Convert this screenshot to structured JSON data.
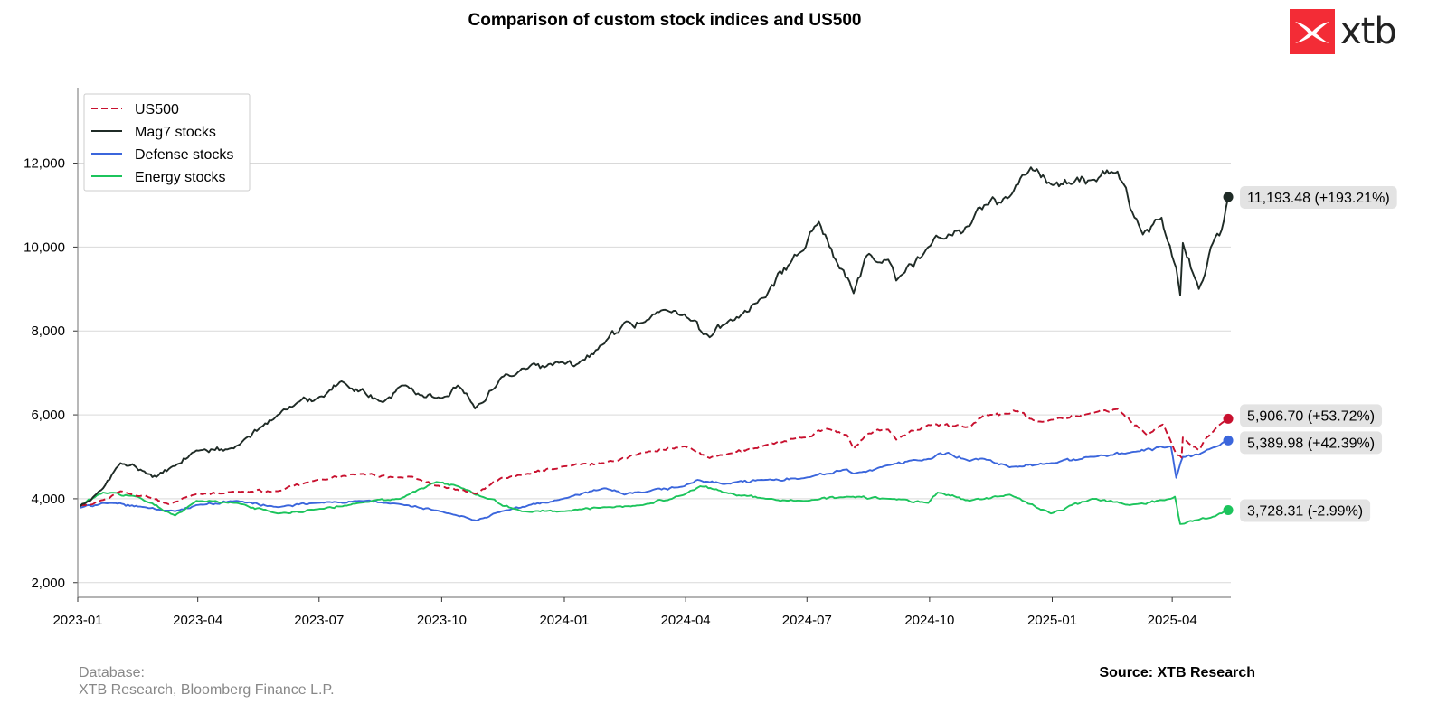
{
  "chart_data": {
    "type": "line",
    "title": "Comparison of custom stock indices and US500",
    "xlabel": "",
    "ylabel": "",
    "ylim": [
      1650,
      13800
    ],
    "yticks": [
      2000,
      4000,
      6000,
      8000,
      10000,
      12000
    ],
    "ytick_labels": [
      "2,000",
      "4,000",
      "6,000",
      "8,000",
      "10,000",
      "12,000"
    ],
    "xlim": [
      "2023-01-01",
      "2025-05-15"
    ],
    "xticks": [
      "2023-01",
      "2023-04",
      "2023-07",
      "2023-10",
      "2024-01",
      "2024-04",
      "2024-07",
      "2024-10",
      "2025-01",
      "2025-04"
    ],
    "grid": "horizontal",
    "legend_position": "top-left",
    "series": [
      {
        "name": "US500",
        "color": "#c8102e",
        "style": "dashed",
        "end_label": "5,906.70 (+53.72%)",
        "points": [
          [
            "2023-01-03",
            3840
          ],
          [
            "2023-01-20",
            3970
          ],
          [
            "2023-02-02",
            4180
          ],
          [
            "2023-02-20",
            4080
          ],
          [
            "2023-03-10",
            3870
          ],
          [
            "2023-03-31",
            4110
          ],
          [
            "2023-04-30",
            4170
          ],
          [
            "2023-05-31",
            4180
          ],
          [
            "2023-06-30",
            4450
          ],
          [
            "2023-07-31",
            4590
          ],
          [
            "2023-08-31",
            4510
          ],
          [
            "2023-09-15",
            4450
          ],
          [
            "2023-09-30",
            4290
          ],
          [
            "2023-10-27",
            4120
          ],
          [
            "2023-11-15",
            4500
          ],
          [
            "2023-11-30",
            4560
          ],
          [
            "2023-12-31",
            4770
          ],
          [
            "2024-01-31",
            4850
          ],
          [
            "2024-02-29",
            5100
          ],
          [
            "2024-03-31",
            5250
          ],
          [
            "2024-04-19",
            4970
          ],
          [
            "2024-04-30",
            5040
          ],
          [
            "2024-05-31",
            5280
          ],
          [
            "2024-06-30",
            5460
          ],
          [
            "2024-07-16",
            5670
          ],
          [
            "2024-07-31",
            5520
          ],
          [
            "2024-08-05",
            5190
          ],
          [
            "2024-08-15",
            5540
          ],
          [
            "2024-08-31",
            5650
          ],
          [
            "2024-09-06",
            5410
          ],
          [
            "2024-09-30",
            5760
          ],
          [
            "2024-10-31",
            5710
          ],
          [
            "2024-11-11",
            6000
          ],
          [
            "2024-11-30",
            6030
          ],
          [
            "2024-12-06",
            6090
          ],
          [
            "2024-12-18",
            5870
          ],
          [
            "2024-12-31",
            5880
          ],
          [
            "2025-01-31",
            6040
          ],
          [
            "2025-02-19",
            6140
          ],
          [
            "2025-03-13",
            5520
          ],
          [
            "2025-03-25",
            5770
          ],
          [
            "2025-04-04",
            5070
          ],
          [
            "2025-04-08",
            4980
          ],
          [
            "2025-04-09",
            5460
          ],
          [
            "2025-04-21",
            5160
          ],
          [
            "2025-04-30",
            5570
          ],
          [
            "2025-05-13",
            5906.7
          ]
        ]
      },
      {
        "name": "Mag7 stocks",
        "color": "#1f2b26",
        "style": "solid",
        "end_label": "11,193.48 (+193.21%)",
        "points": [
          [
            "2023-01-03",
            3817
          ],
          [
            "2023-01-06",
            3880
          ],
          [
            "2023-01-20",
            4250
          ],
          [
            "2023-02-02",
            4850
          ],
          [
            "2023-02-20",
            4650
          ],
          [
            "2023-03-01",
            4520
          ],
          [
            "2023-03-15",
            4780
          ],
          [
            "2023-03-31",
            5150
          ],
          [
            "2023-04-28",
            5200
          ],
          [
            "2023-05-31",
            6000
          ],
          [
            "2023-06-15",
            6300
          ],
          [
            "2023-06-30",
            6400
          ],
          [
            "2023-07-18",
            6800
          ],
          [
            "2023-08-18",
            6300
          ],
          [
            "2023-09-01",
            6700
          ],
          [
            "2023-09-30",
            6400
          ],
          [
            "2023-10-13",
            6700
          ],
          [
            "2023-10-26",
            6150
          ],
          [
            "2023-11-15",
            6900
          ],
          [
            "2023-11-30",
            7100
          ],
          [
            "2023-12-31",
            7250
          ],
          [
            "2024-01-10",
            7200
          ],
          [
            "2024-01-31",
            7700
          ],
          [
            "2024-02-15",
            8200
          ],
          [
            "2024-02-29",
            8200
          ],
          [
            "2024-03-15",
            8500
          ],
          [
            "2024-03-31",
            8400
          ],
          [
            "2024-04-19",
            7850
          ],
          [
            "2024-04-30",
            8150
          ],
          [
            "2024-05-31",
            8800
          ],
          [
            "2024-06-20",
            9700
          ],
          [
            "2024-06-30",
            10000
          ],
          [
            "2024-07-10",
            10600
          ],
          [
            "2024-07-24",
            9600
          ],
          [
            "2024-08-05",
            8900
          ],
          [
            "2024-08-15",
            9800
          ],
          [
            "2024-08-31",
            9700
          ],
          [
            "2024-09-06",
            9200
          ],
          [
            "2024-09-30",
            10000
          ],
          [
            "2024-10-15",
            10300
          ],
          [
            "2024-10-31",
            10500
          ],
          [
            "2024-11-11",
            11000
          ],
          [
            "2024-11-30",
            11200
          ],
          [
            "2024-12-16",
            11900
          ],
          [
            "2024-12-31",
            11500
          ],
          [
            "2025-01-15",
            11500
          ],
          [
            "2025-01-31",
            11600
          ],
          [
            "2025-02-19",
            11800
          ],
          [
            "2025-03-10",
            10300
          ],
          [
            "2025-03-24",
            10700
          ],
          [
            "2025-04-04",
            9500
          ],
          [
            "2025-04-07",
            8850
          ],
          [
            "2025-04-09",
            10100
          ],
          [
            "2025-04-21",
            9000
          ],
          [
            "2025-04-30",
            10000
          ],
          [
            "2025-05-08",
            10400
          ],
          [
            "2025-05-13",
            11193.48
          ]
        ]
      },
      {
        "name": "Defense stocks",
        "color": "#3b66dc",
        "style": "solid",
        "end_label": "5,389.98 (+42.39%)",
        "points": [
          [
            "2023-01-03",
            3785
          ],
          [
            "2023-01-20",
            3900
          ],
          [
            "2023-02-20",
            3800
          ],
          [
            "2023-03-15",
            3700
          ],
          [
            "2023-03-31",
            3850
          ],
          [
            "2023-04-30",
            3950
          ],
          [
            "2023-05-31",
            3800
          ],
          [
            "2023-06-30",
            3900
          ],
          [
            "2023-07-31",
            3950
          ],
          [
            "2023-08-31",
            3870
          ],
          [
            "2023-09-30",
            3700
          ],
          [
            "2023-10-27",
            3480
          ],
          [
            "2023-11-15",
            3700
          ],
          [
            "2023-12-31",
            4000
          ],
          [
            "2024-01-31",
            4250
          ],
          [
            "2024-02-15",
            4100
          ],
          [
            "2024-02-29",
            4150
          ],
          [
            "2024-03-31",
            4300
          ],
          [
            "2024-04-10",
            4450
          ],
          [
            "2024-04-30",
            4350
          ],
          [
            "2024-05-31",
            4450
          ],
          [
            "2024-06-30",
            4500
          ],
          [
            "2024-07-31",
            4700
          ],
          [
            "2024-08-05",
            4600
          ],
          [
            "2024-08-31",
            4800
          ],
          [
            "2024-09-30",
            4950
          ],
          [
            "2024-10-15",
            5100
          ],
          [
            "2024-10-31",
            4900
          ],
          [
            "2024-11-11",
            4950
          ],
          [
            "2024-11-30",
            4750
          ],
          [
            "2024-12-31",
            4850
          ],
          [
            "2025-01-31",
            5000
          ],
          [
            "2025-02-28",
            5100
          ],
          [
            "2025-03-31",
            5250
          ],
          [
            "2025-04-04",
            4500
          ],
          [
            "2025-04-09",
            5000
          ],
          [
            "2025-04-21",
            5050
          ],
          [
            "2025-04-30",
            5200
          ],
          [
            "2025-05-13",
            5389.98
          ]
        ]
      },
      {
        "name": "Energy stocks",
        "color": "#1cc45c",
        "style": "solid",
        "end_label": "3,728.31 (-2.99%)",
        "points": [
          [
            "2023-01-03",
            3843
          ],
          [
            "2023-01-20",
            4150
          ],
          [
            "2023-02-15",
            4050
          ],
          [
            "2023-03-15",
            3600
          ],
          [
            "2023-03-31",
            3950
          ],
          [
            "2023-04-30",
            3900
          ],
          [
            "2023-05-31",
            3650
          ],
          [
            "2023-06-30",
            3750
          ],
          [
            "2023-07-31",
            3900
          ],
          [
            "2023-08-31",
            4000
          ],
          [
            "2023-09-27",
            4400
          ],
          [
            "2023-10-13",
            4300
          ],
          [
            "2023-10-31",
            4050
          ],
          [
            "2023-11-30",
            3700
          ],
          [
            "2023-12-31",
            3700
          ],
          [
            "2024-01-31",
            3800
          ],
          [
            "2024-02-29",
            3850
          ],
          [
            "2024-03-31",
            4100
          ],
          [
            "2024-04-12",
            4300
          ],
          [
            "2024-04-30",
            4150
          ],
          [
            "2024-05-31",
            4000
          ],
          [
            "2024-06-30",
            3950
          ],
          [
            "2024-07-31",
            4050
          ],
          [
            "2024-08-31",
            4000
          ],
          [
            "2024-09-30",
            3900
          ],
          [
            "2024-10-07",
            4150
          ],
          [
            "2024-10-31",
            3950
          ],
          [
            "2024-11-30",
            4100
          ],
          [
            "2024-12-31",
            3650
          ],
          [
            "2025-01-31",
            4000
          ],
          [
            "2025-02-28",
            3850
          ],
          [
            "2025-03-31",
            4000
          ],
          [
            "2025-04-03",
            4050
          ],
          [
            "2025-04-07",
            3400
          ],
          [
            "2025-04-21",
            3500
          ],
          [
            "2025-04-30",
            3550
          ],
          [
            "2025-05-13",
            3728.31
          ]
        ]
      }
    ]
  },
  "logo": {
    "text": "xtb",
    "color": "#f32c36"
  },
  "footer": {
    "database_label": "Database:",
    "database_sources": "XTB Research, Bloomberg Finance L.P.",
    "source": "Source: XTB Research"
  }
}
